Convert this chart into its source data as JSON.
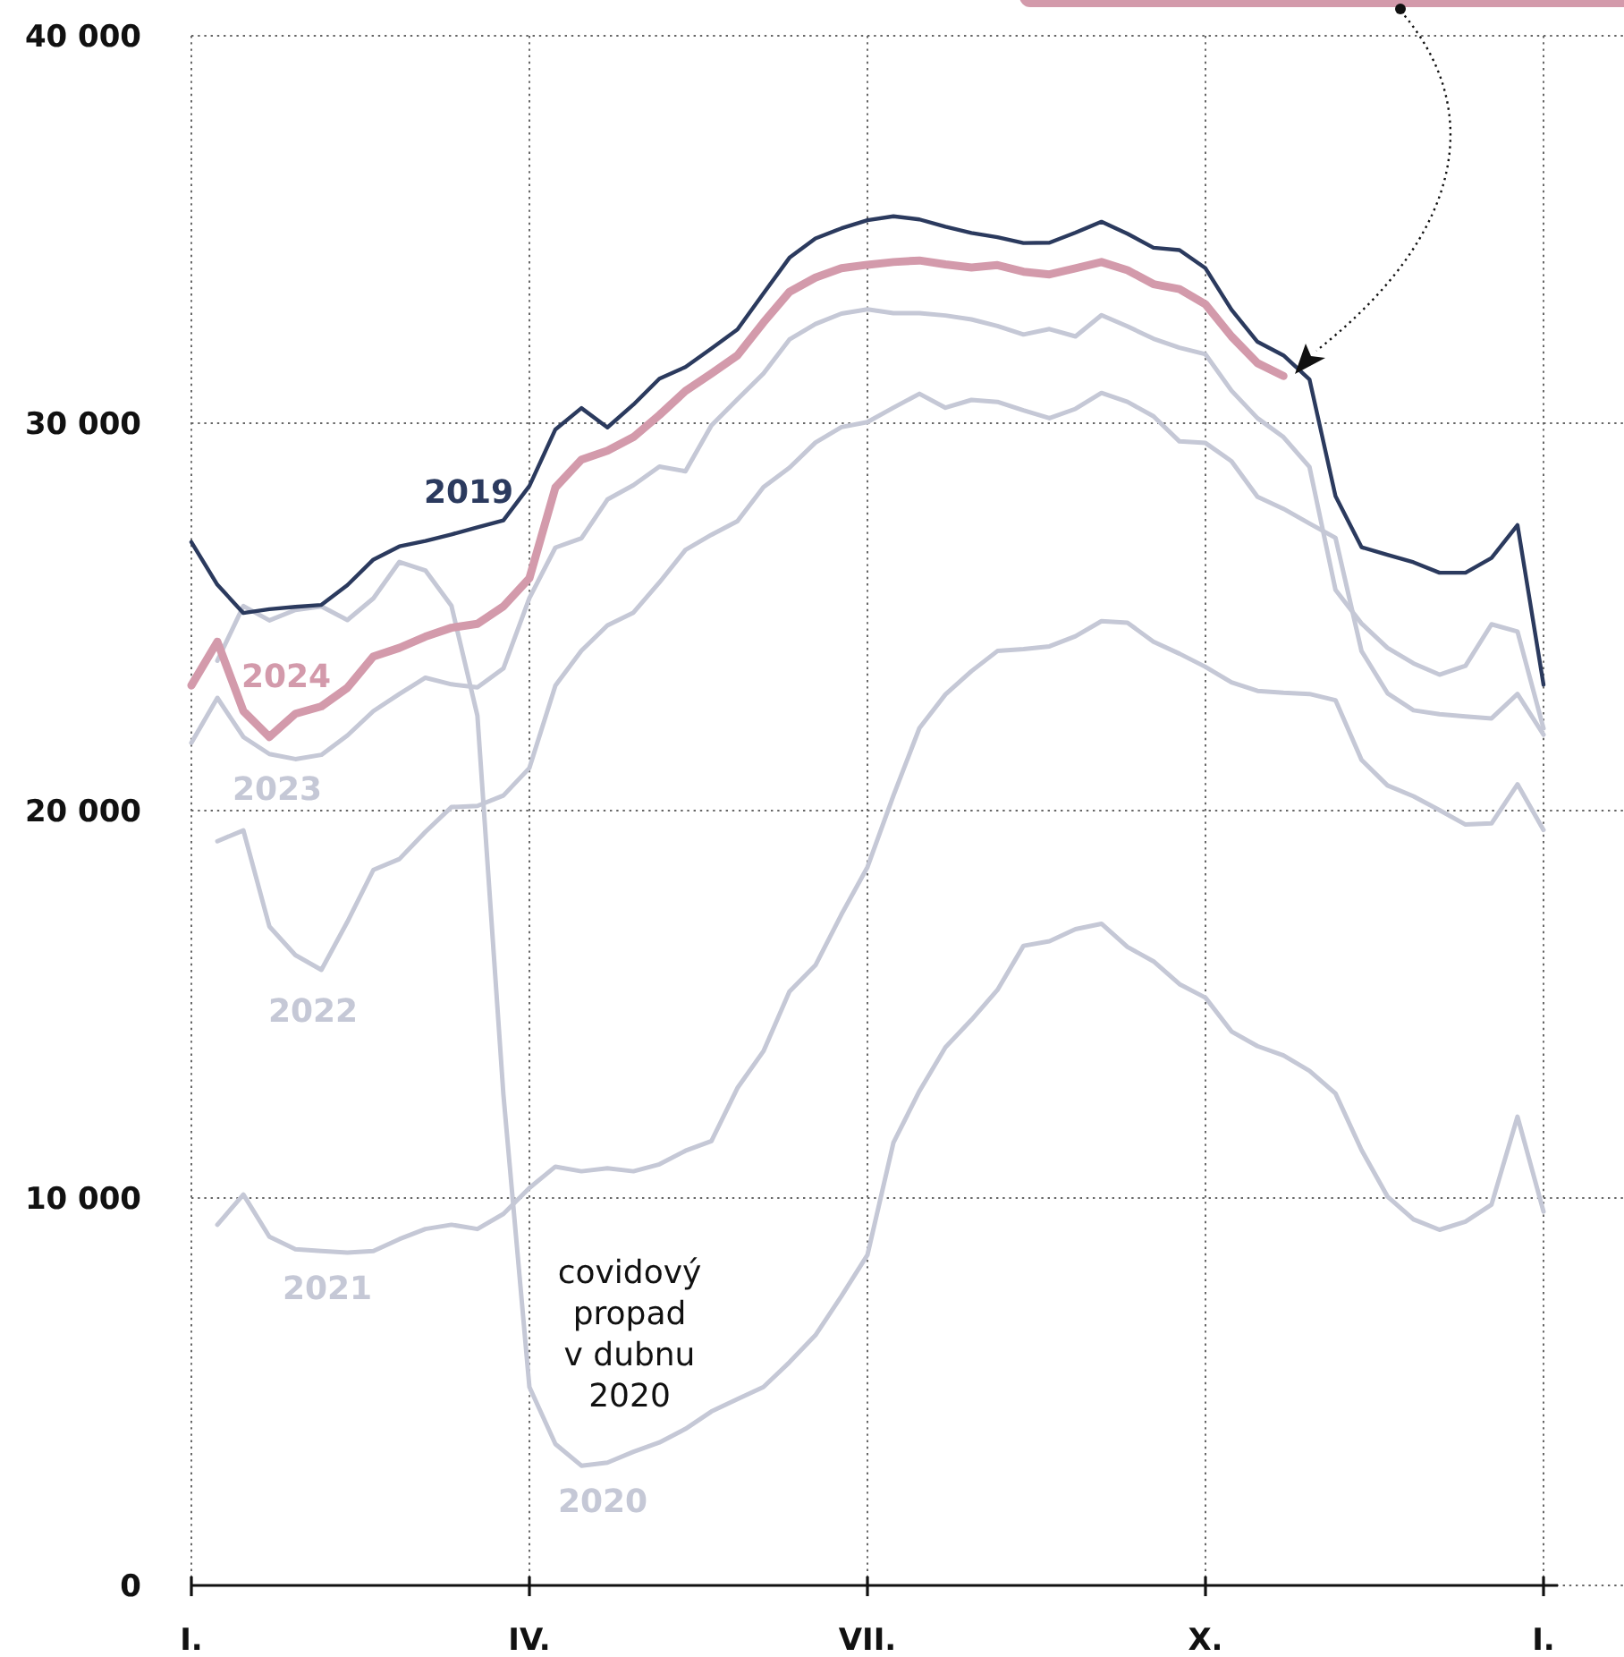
{
  "chart_data": {
    "type": "line",
    "categories": [
      "I.",
      null,
      null,
      null,
      null,
      null,
      null,
      null,
      null,
      null,
      null,
      null,
      null,
      "IV.",
      null,
      null,
      null,
      null,
      null,
      null,
      null,
      null,
      null,
      null,
      null,
      null,
      "VII.",
      null,
      null,
      null,
      null,
      null,
      null,
      null,
      null,
      null,
      null,
      null,
      null,
      "X.",
      null,
      null,
      null,
      null,
      null,
      null,
      null,
      null,
      null,
      null,
      null,
      null,
      "I."
    ],
    "ylim": [
      0,
      40000
    ],
    "yticks": [
      {
        "value": 0,
        "label": "0"
      },
      {
        "value": 10000,
        "label": "10 000"
      },
      {
        "value": 20000,
        "label": "20 000"
      },
      {
        "value": 30000,
        "label": "30 000"
      },
      {
        "value": 40000,
        "label": "40 000"
      }
    ],
    "grid": true,
    "annotations": [
      "covidový propad v dubnu 2020"
    ],
    "series": [
      {
        "name": "2020",
        "color": "#c5c8d6",
        "values": [
          null,
          23870,
          25280,
          24910,
          25180,
          25270,
          24920,
          25480,
          26420,
          26200,
          25290,
          22450,
          12670,
          5120,
          3650,
          3090,
          3170,
          3450,
          3690,
          4040,
          4490,
          4810,
          5120,
          5760,
          6460,
          7470,
          8530,
          11430,
          12760,
          13890,
          14600,
          15370,
          16510,
          16630,
          16940,
          17080,
          16480,
          16110,
          15520,
          15170,
          14300,
          13920,
          13680,
          13280,
          12700,
          11240,
          10040,
          9450,
          9180,
          9390,
          9830,
          12100,
          9650
        ]
      },
      {
        "name": "2021",
        "color": "#c5c8d6",
        "values": [
          null,
          9310,
          10090,
          9000,
          8680,
          8630,
          8590,
          8630,
          8940,
          9200,
          9310,
          9200,
          9590,
          10260,
          10810,
          10690,
          10770,
          10690,
          10870,
          11220,
          11470,
          12840,
          13790,
          15330,
          16010,
          17320,
          18540,
          20390,
          22130,
          23000,
          23600,
          24120,
          24170,
          24240,
          24500,
          24890,
          24850,
          24360,
          24050,
          23710,
          23310,
          23090,
          23040,
          23010,
          22850,
          21310,
          20650,
          20370,
          20010,
          19640,
          19670,
          20680,
          19500
        ]
      },
      {
        "name": "2022",
        "color": "#c5c8d6",
        "values": [
          null,
          19210,
          19490,
          17010,
          16270,
          15890,
          17130,
          18470,
          18750,
          19450,
          20090,
          20120,
          20390,
          21100,
          23230,
          24130,
          24780,
          25110,
          25890,
          26730,
          27120,
          27470,
          28350,
          28850,
          29500,
          29900,
          30030,
          30400,
          30760,
          30400,
          30600,
          30550,
          30330,
          30130,
          30370,
          30780,
          30550,
          30180,
          29530,
          29490,
          29020,
          28100,
          27790,
          27410,
          27040,
          24120,
          23030,
          22590,
          22490,
          22430,
          22380,
          23010,
          21960
        ]
      },
      {
        "name": "2023",
        "color": "#c5c8d6",
        "values": [
          21750,
          22910,
          21900,
          21460,
          21330,
          21440,
          21940,
          22570,
          23010,
          23430,
          23260,
          23180,
          23670,
          25490,
          26790,
          27030,
          28030,
          28400,
          28880,
          28760,
          29940,
          30620,
          31280,
          32160,
          32560,
          32830,
          32940,
          32840,
          32840,
          32780,
          32680,
          32510,
          32290,
          32430,
          32240,
          32790,
          32500,
          32180,
          31950,
          31780,
          30840,
          30130,
          29640,
          28870,
          25700,
          24830,
          24200,
          23800,
          23510,
          23740,
          24810,
          24620,
          22120
        ]
      },
      {
        "name": "2019",
        "color": "#2b3a5e",
        "values": [
          26930,
          25830,
          25100,
          25200,
          25260,
          25310,
          25820,
          26480,
          26820,
          26960,
          27130,
          27310,
          27490,
          28380,
          29840,
          30390,
          29890,
          30480,
          31150,
          31450,
          31930,
          32420,
          33350,
          34270,
          34770,
          35030,
          35240,
          35340,
          35260,
          35070,
          34910,
          34800,
          34650,
          34660,
          34920,
          35200,
          34890,
          34530,
          34470,
          34000,
          32930,
          32100,
          31750,
          31130,
          28120,
          26800,
          26600,
          26410,
          26140,
          26140,
          26520,
          27370,
          23250
        ]
      },
      {
        "name": "2024",
        "color": "#d39aab",
        "values": [
          23230,
          24360,
          22570,
          21900,
          22500,
          22690,
          23170,
          23980,
          24200,
          24490,
          24720,
          24820,
          25270,
          26000,
          28340,
          29060,
          29290,
          29640,
          30210,
          30830,
          31280,
          31750,
          32600,
          33390,
          33760,
          34000,
          34090,
          34160,
          34200,
          34100,
          34020,
          34080,
          33910,
          33840,
          34000,
          34160,
          33950,
          33590,
          33460,
          33070,
          32240,
          31550,
          31220,
          null,
          null,
          null,
          null,
          null,
          null,
          null,
          null,
          null,
          null
        ]
      }
    ]
  }
}
